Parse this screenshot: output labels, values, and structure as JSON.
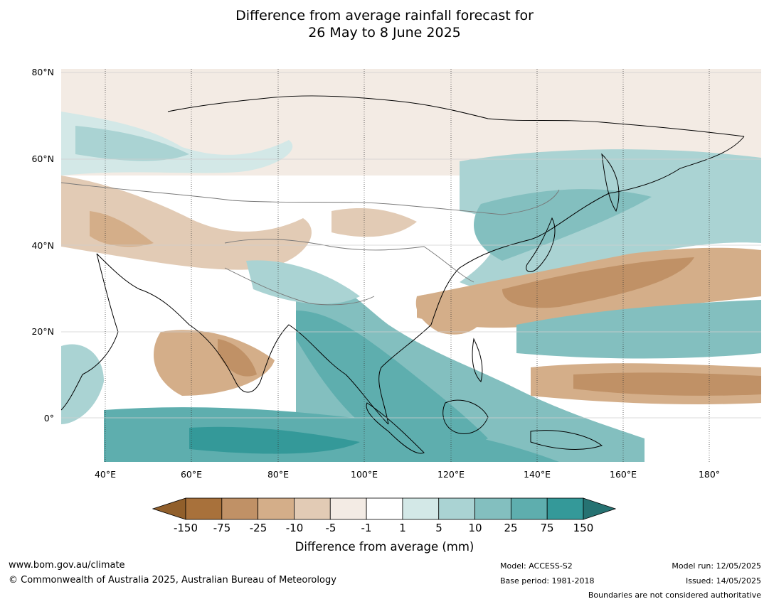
{
  "title": {
    "line1": "Difference from average rainfall forecast for",
    "line2": "26 May to 8 June 2025"
  },
  "map": {
    "latitude_labels": [
      "80°N",
      "60°N",
      "40°N",
      "20°N",
      "0°"
    ],
    "longitude_labels": [
      "40°E",
      "60°E",
      "80°E",
      "100°E",
      "120°E",
      "140°E",
      "160°E",
      "180°"
    ],
    "colors": {
      "dry_strong": "#c09166",
      "dry_mid": "#d4ae89",
      "dry_light": "#e2cbb5",
      "dry_faint": "#f3ebe4",
      "neutral": "#ffffff",
      "wet_faint": "#d3e8e7",
      "wet_light": "#aad3d3",
      "wet_mid": "#83bfbf",
      "wet_strong": "#5eaeae",
      "wet_very": "#349999"
    }
  },
  "colorbar": {
    "tick_labels": [
      "-150",
      "-75",
      "-25",
      "-10",
      "-5",
      "-1",
      "1",
      "5",
      "10",
      "25",
      "75",
      "150"
    ],
    "colors": [
      "#a8713b",
      "#c09166",
      "#d4ae89",
      "#e2cbb5",
      "#f3ebe4",
      "#ffffff",
      "#d3e8e7",
      "#aad3d3",
      "#83bfbf",
      "#5eaeae",
      "#349999"
    ],
    "low_extension_color": "#915f2b",
    "high_extension_color": "#267272",
    "title": "Difference from average (mm)"
  },
  "footer": {
    "website": "www.bom.gov.au/climate",
    "copyright": "© Commonwealth of Australia 2025, Australian Bureau of Meteorology",
    "model": "Model: ACCESS-S2",
    "base_period": "Base period: 1981-2018",
    "model_run": "Model run: 12/05/2025",
    "issued": "Issued: 14/05/2025",
    "disclaimer": "Boundaries are not considered authoritative"
  }
}
